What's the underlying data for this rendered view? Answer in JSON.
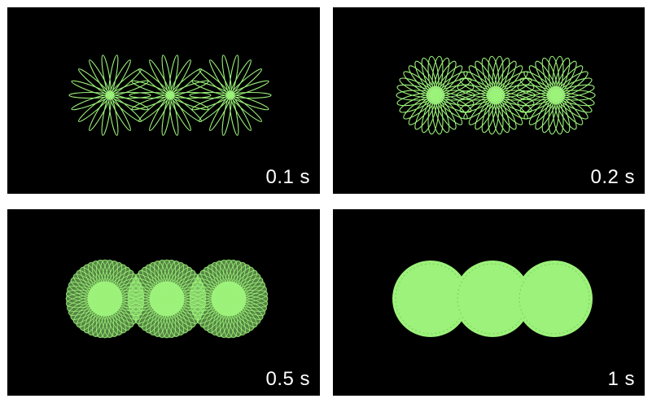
{
  "colors": {
    "background": "#000000",
    "pattern": "#9cf27a",
    "label": "#ffffff",
    "page": "#ffffff"
  },
  "panels": [
    {
      "label": "0.1 s",
      "fill_level": 0.1
    },
    {
      "label": "0.2 s",
      "fill_level": 0.2
    },
    {
      "label": "0.5 s",
      "fill_level": 0.5
    },
    {
      "label": "1 s",
      "fill_level": 1.0
    }
  ]
}
